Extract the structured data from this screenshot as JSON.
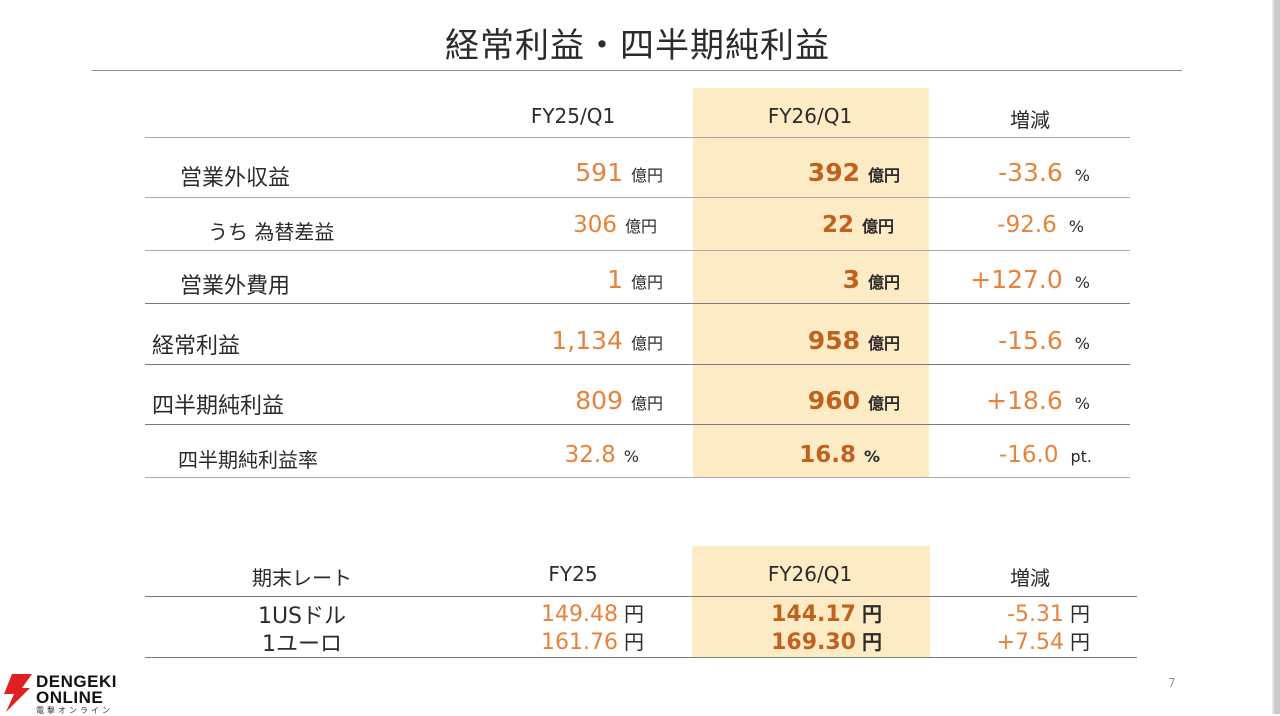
{
  "title": "経常利益・四半期純利益",
  "columns": {
    "prev": "FY25/Q1",
    "curr": "FY26/Q1",
    "change": "増減"
  },
  "rows": [
    {
      "label": "営業外収益",
      "prev": "591",
      "prev_unit": "億円",
      "curr": "392",
      "curr_unit": "億円",
      "change": "-33.6",
      "change_unit": "%"
    },
    {
      "label": "うち 為替差益",
      "prev": "306",
      "prev_unit": "億円",
      "curr": "22",
      "curr_unit": "億円",
      "change": "-92.6",
      "change_unit": "%"
    },
    {
      "label": "営業外費用",
      "prev": "1",
      "prev_unit": "億円",
      "curr": "3",
      "curr_unit": "億円",
      "change": "+127.0",
      "change_unit": "%"
    },
    {
      "label": "経常利益",
      "prev": "1,134",
      "prev_unit": "億円",
      "curr": "958",
      "curr_unit": "億円",
      "change": "-15.6",
      "change_unit": "%"
    },
    {
      "label": "四半期純利益",
      "prev": "809",
      "prev_unit": "億円",
      "curr": "960",
      "curr_unit": "億円",
      "change": "+18.6",
      "change_unit": "%"
    },
    {
      "label": "四半期純利益率",
      "prev": "32.8",
      "prev_unit": "%",
      "curr": "16.8",
      "curr_unit": "%",
      "change": "-16.0",
      "change_unit": "pt."
    }
  ],
  "rates": {
    "header": {
      "label": "期末レート",
      "prev": "FY25",
      "curr": "FY26/Q1",
      "change": "増減"
    },
    "rows": [
      {
        "label": "1USドル",
        "prev": "149.48",
        "curr": "144.17",
        "change": "-5.31",
        "unit": "円"
      },
      {
        "label": "1ユーロ",
        "prev": "161.76",
        "curr": "169.30",
        "change": "+7.54",
        "unit": "円"
      }
    ]
  },
  "page_number": "7",
  "logo": {
    "line1": "DENGEKI",
    "line2": "ONLINE",
    "line3": "電撃オンライン"
  },
  "colors": {
    "highlight": "#fdebc5",
    "value_orange": "#e8823a",
    "value_bold": "#c0621e"
  }
}
